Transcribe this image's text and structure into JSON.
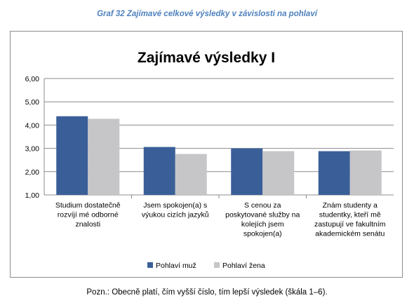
{
  "caption": "Graf 32 Zajímavé celkové výsledky v závislosti na pohlaví",
  "note": "Pozn.: Obecně platí, čím vyšší číslo, tím lepší výsledek (škála 1–6).",
  "chart_data": {
    "type": "bar",
    "title": "Zajímavé výsledky I",
    "xlabel": "",
    "ylabel": "",
    "ylim": [
      1,
      6
    ],
    "yticks": [
      "1,00",
      "2,00",
      "3,00",
      "4,00",
      "5,00",
      "6,00"
    ],
    "grid": true,
    "legend_position": "bottom",
    "categories": [
      [
        "Studium dostatečně",
        "rozvíjí mé odborné",
        "znalosti"
      ],
      [
        "Jsem spokojen(a) s",
        "výukou cizích jazyků"
      ],
      [
        "S cenou za",
        "poskytované služby na",
        "kolejích jsem",
        "spokojen(a)"
      ],
      [
        "Znám studenty a",
        "studentky, kteří mě",
        "zastupují ve fakultním",
        "akademickém senátu"
      ]
    ],
    "series": [
      {
        "name": "Pohlaví muž",
        "color": "#3a5f98",
        "values": [
          4.38,
          3.06,
          3.0,
          2.88
        ]
      },
      {
        "name": "Pohlaví žena",
        "color": "#c6c5c8",
        "values": [
          4.27,
          2.76,
          2.88,
          2.91
        ]
      }
    ]
  }
}
